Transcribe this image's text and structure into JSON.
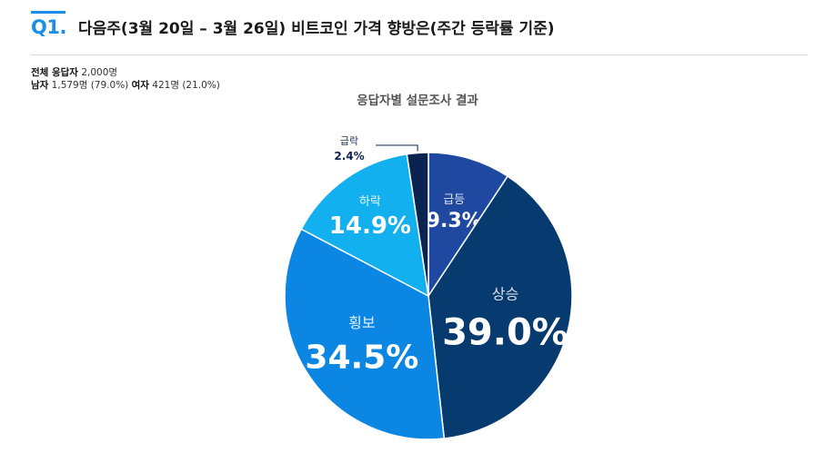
{
  "header": {
    "question_number": "Q1.",
    "title": "다음주(3월 20일 – 3월 26일)  비트코인 가격 향방은(주간 등락률 기준)"
  },
  "respondents": {
    "total_label": "전체 응답자",
    "total_value": "2,000명",
    "male_label": "남자",
    "male_value": "1,579명 (79.0%)",
    "female_label": "여자",
    "female_value": "421명 (21.0%)"
  },
  "chart_data": {
    "type": "pie",
    "title": "응답자별 설문조사 결과",
    "slices": [
      {
        "label": "급등",
        "value": 9.3,
        "display": "9.3%",
        "color": "#1f49a0"
      },
      {
        "label": "상승",
        "value": 39.0,
        "display": "39.0%",
        "color": "#073a6e"
      },
      {
        "label": "횡보",
        "value": 34.5,
        "display": "34.5%",
        "color": "#0b86e3"
      },
      {
        "label": "하락",
        "value": 14.9,
        "display": "14.9%",
        "color": "#12b0ee"
      },
      {
        "label": "급락",
        "value": 2.4,
        "display": "2.4%",
        "color": "#0b2350"
      }
    ]
  }
}
